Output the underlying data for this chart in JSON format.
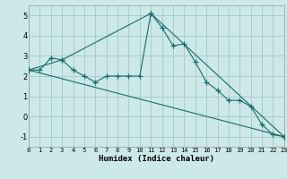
{
  "xlabel": "Humidex (Indice chaleur)",
  "ylabel": "",
  "bg_color": "#cce8e8",
  "grid_color": "#aacccc",
  "line_color": "#1a6b6b",
  "line1_x": [
    0,
    1,
    2,
    3,
    4,
    5,
    6,
    7,
    8,
    9,
    10,
    11,
    12,
    13,
    14,
    15,
    16,
    17,
    18,
    19,
    20,
    21,
    22,
    23
  ],
  "line1_y": [
    2.3,
    2.3,
    2.9,
    2.8,
    2.3,
    2.0,
    1.7,
    2.0,
    2.0,
    2.0,
    2.0,
    5.1,
    4.4,
    3.5,
    3.6,
    2.7,
    1.7,
    1.3,
    0.8,
    0.8,
    0.5,
    -0.4,
    -0.9,
    -1.0
  ],
  "line2_x": [
    0,
    23
  ],
  "line2_y": [
    2.3,
    -1.0
  ],
  "line3_x": [
    0,
    3,
    11,
    23
  ],
  "line3_y": [
    2.3,
    2.8,
    5.1,
    -1.0
  ],
  "xlim": [
    0,
    23
  ],
  "ylim": [
    -1.5,
    5.5
  ],
  "yticks": [
    -1,
    0,
    1,
    2,
    3,
    4,
    5
  ],
  "xticks": [
    0,
    1,
    2,
    3,
    4,
    5,
    6,
    7,
    8,
    9,
    10,
    11,
    12,
    13,
    14,
    15,
    16,
    17,
    18,
    19,
    20,
    21,
    22,
    23
  ]
}
